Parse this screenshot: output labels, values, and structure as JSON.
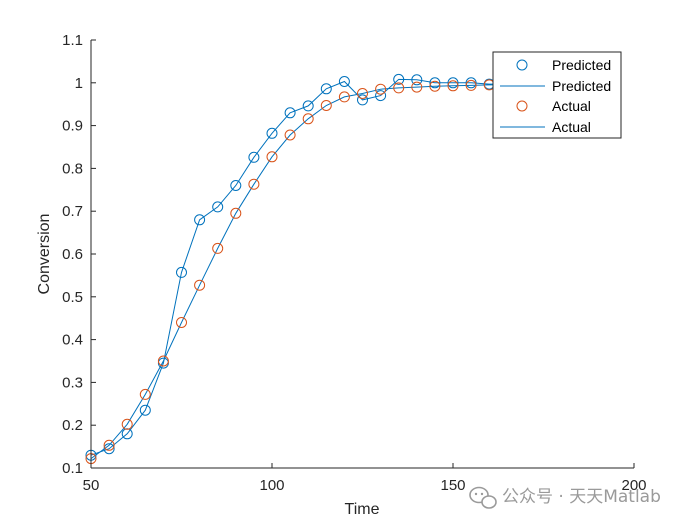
{
  "chart_data": {
    "type": "line",
    "title": "",
    "xlabel": "Time",
    "ylabel": "Conversion",
    "xlim": [
      50,
      200
    ],
    "ylim": [
      0.1,
      1.1
    ],
    "xticks": [
      50,
      100,
      150,
      200
    ],
    "xtick_labels": [
      "50",
      "100",
      "150",
      "200"
    ],
    "yticks": [
      0.1,
      0.2,
      0.3,
      0.4,
      0.5,
      0.6,
      0.7,
      0.8,
      0.9,
      1.0,
      1.1
    ],
    "ytick_labels": [
      "0.1",
      "0.2",
      "0.3",
      "0.4",
      "0.5",
      "0.6",
      "0.7",
      "0.8",
      "0.9",
      "1",
      "1.1"
    ],
    "grid": false,
    "legend_position": "top-right",
    "legend": [
      {
        "label": "Predicted",
        "style": "marker",
        "color": "#0072BD"
      },
      {
        "label": "Predicted",
        "style": "line",
        "color": "#0072BD"
      },
      {
        "label": "Actual",
        "style": "marker",
        "color": "#D95319"
      },
      {
        "label": "Actual",
        "style": "line",
        "color": "#0072BD"
      }
    ],
    "series": [
      {
        "name": "Predicted",
        "marker_color": "#0072BD",
        "line_color": "#0072BD",
        "x": [
          50,
          55,
          60,
          65,
          70,
          75,
          80,
          85,
          90,
          95,
          100,
          105,
          110,
          115,
          120,
          125,
          130,
          135,
          140,
          145,
          150,
          155,
          160,
          165,
          170
        ],
        "y": [
          0.13,
          0.145,
          0.18,
          0.235,
          0.345,
          0.557,
          0.68,
          0.71,
          0.76,
          0.826,
          0.882,
          0.93,
          0.946,
          0.986,
          1.003,
          0.96,
          0.97,
          1.008,
          1.007,
          1.0,
          1.0,
          1.0,
          0.997,
          0.997,
          0.997
        ]
      },
      {
        "name": "Actual",
        "marker_color": "#D95319",
        "line_color": "#0072BD",
        "x": [
          50,
          55,
          60,
          65,
          70,
          75,
          80,
          85,
          90,
          95,
          100,
          105,
          110,
          115,
          120,
          125,
          130,
          135,
          140,
          145,
          150,
          155,
          160,
          165,
          170
        ],
        "y": [
          0.122,
          0.153,
          0.202,
          0.272,
          0.35,
          0.44,
          0.527,
          0.613,
          0.695,
          0.763,
          0.827,
          0.878,
          0.916,
          0.947,
          0.967,
          0.975,
          0.985,
          0.988,
          0.99,
          0.992,
          0.993,
          0.994,
          0.995,
          0.995,
          0.995
        ]
      }
    ]
  },
  "watermark": {
    "text": "公众号 · 天天Matlab",
    "icon": "wechat-icon"
  }
}
